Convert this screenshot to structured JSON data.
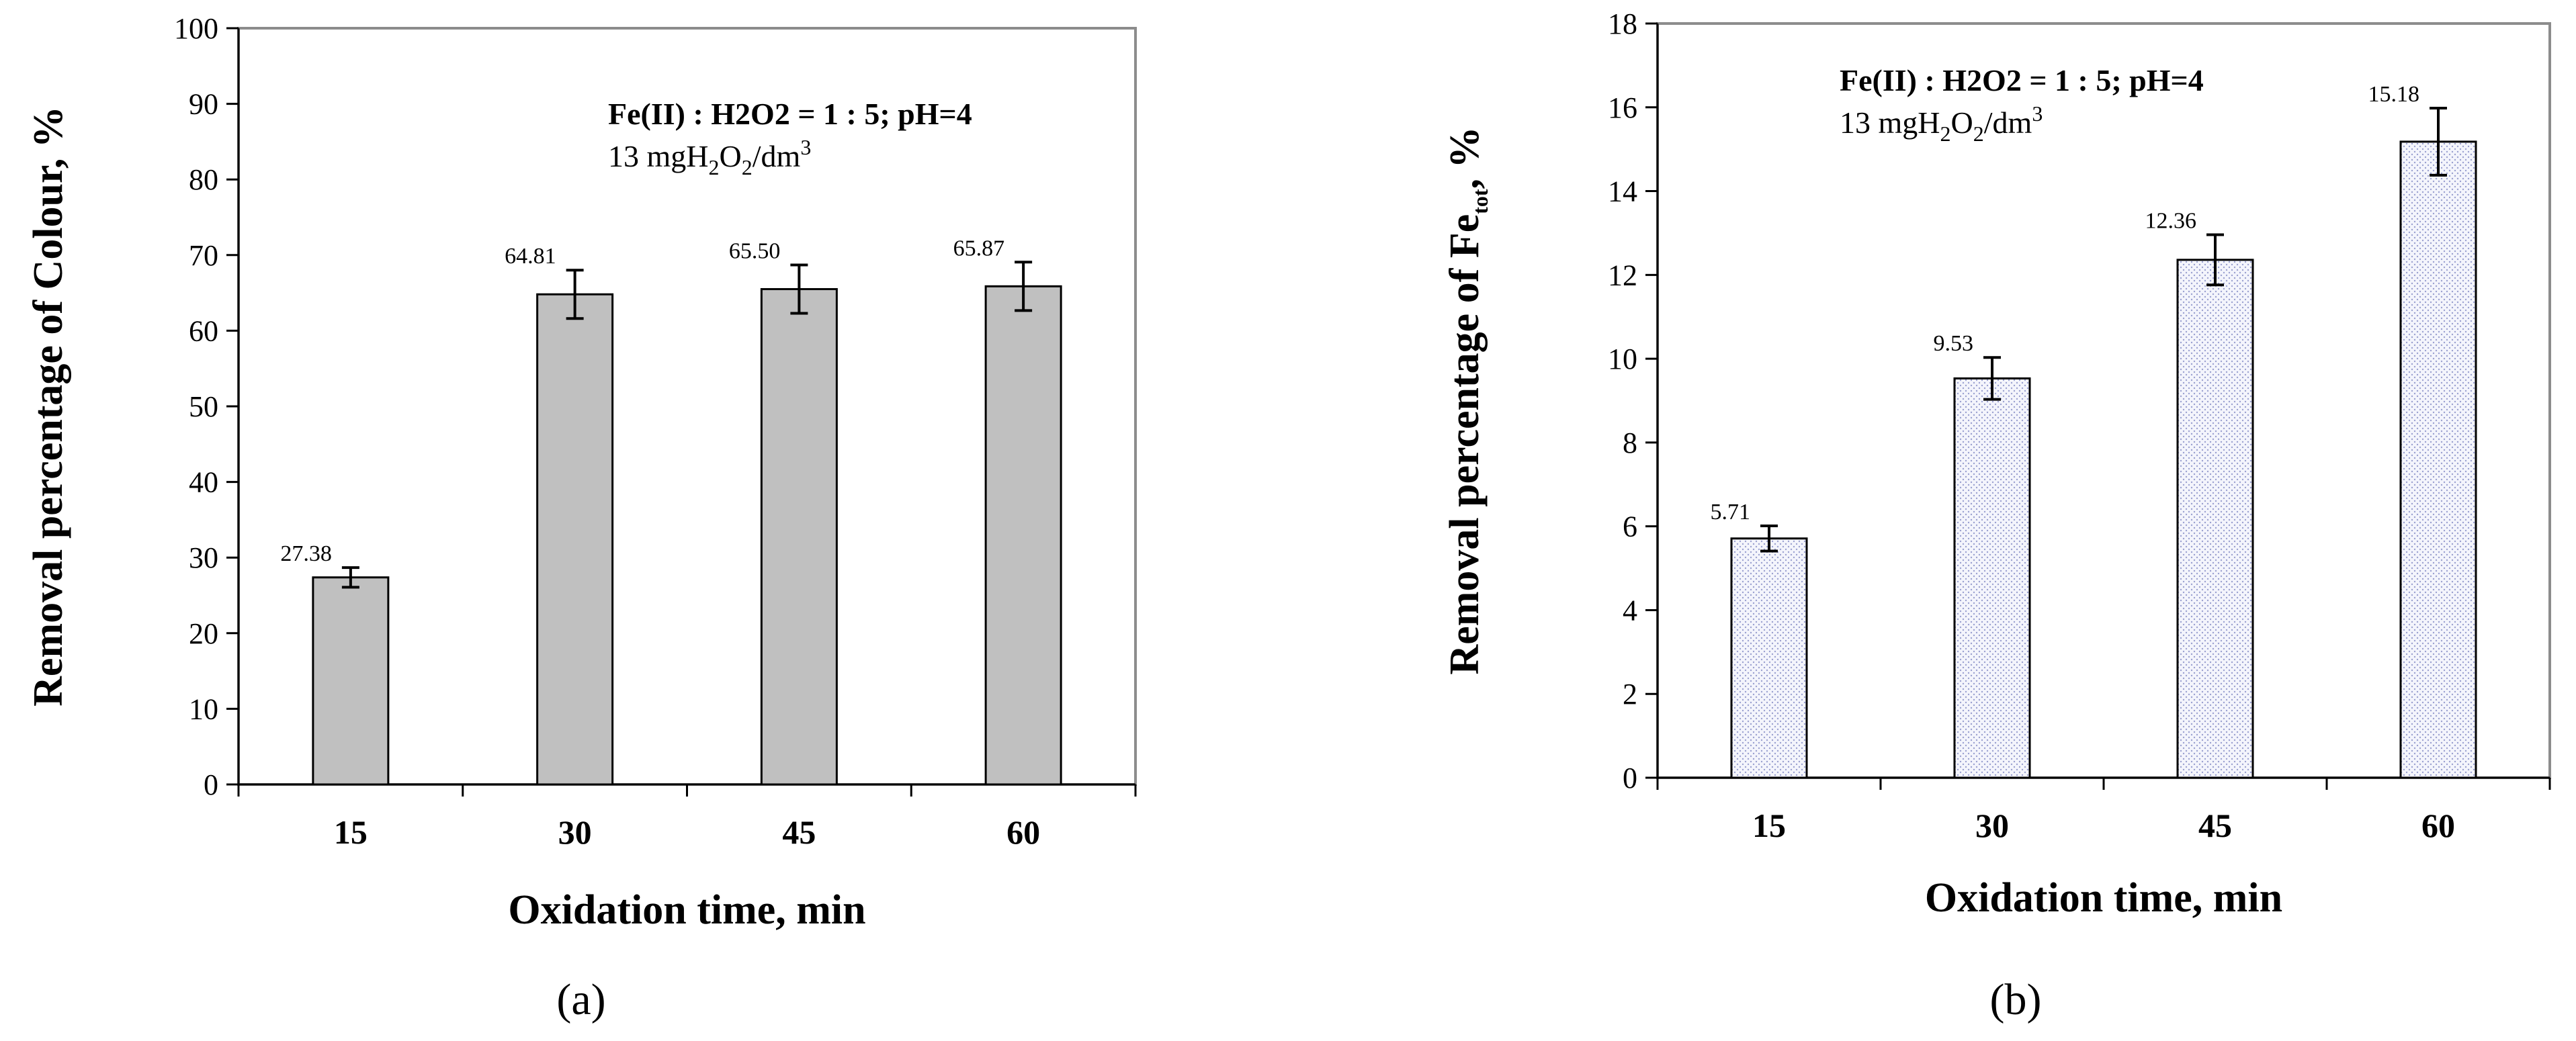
{
  "chart_data": [
    {
      "panel_label": "(a)",
      "type": "bar",
      "title": "",
      "xlabel": "Oxidation time, min",
      "ylabel": "Removal percentage of  Colour,   %",
      "ylim": [
        0,
        100
      ],
      "ytick_step": 10,
      "categories": [
        "15",
        "30",
        "45",
        "60"
      ],
      "values": [
        27.38,
        64.81,
        65.5,
        65.87
      ],
      "value_labels": [
        "27.38",
        "64.81",
        "65.50",
        "65.87"
      ],
      "errors": [
        1.3,
        3.2,
        3.2,
        3.2
      ],
      "bar_fill": "#c0c0c0",
      "bar_pattern": "solid",
      "annotation_line1": "Fe(II) : H2O2 = 1 : 5; pH=4",
      "annotation_line2": "13 mgH2O2/dm3"
    },
    {
      "panel_label": "(b)",
      "type": "bar",
      "title": "",
      "xlabel": "Oxidation time, min",
      "ylabel": "Removal percentage of  Fe",
      "ylabel_sub": "tot",
      "ylabel_suffix": ",   %",
      "ylim": [
        0,
        18
      ],
      "ytick_step": 2,
      "categories": [
        "15",
        "30",
        "45",
        "60"
      ],
      "values": [
        5.71,
        9.53,
        12.36,
        15.18
      ],
      "value_labels": [
        "5.71",
        "9.53",
        "12.36",
        "15.18"
      ],
      "errors": [
        0.3,
        0.5,
        0.6,
        0.8
      ],
      "bar_fill": "#eef0fa",
      "bar_pattern": "dotted",
      "annotation_line1": "Fe(II) : H2O2 = 1 : 5; pH=4",
      "annotation_line2": "13 mgH2O2/dm3"
    }
  ]
}
